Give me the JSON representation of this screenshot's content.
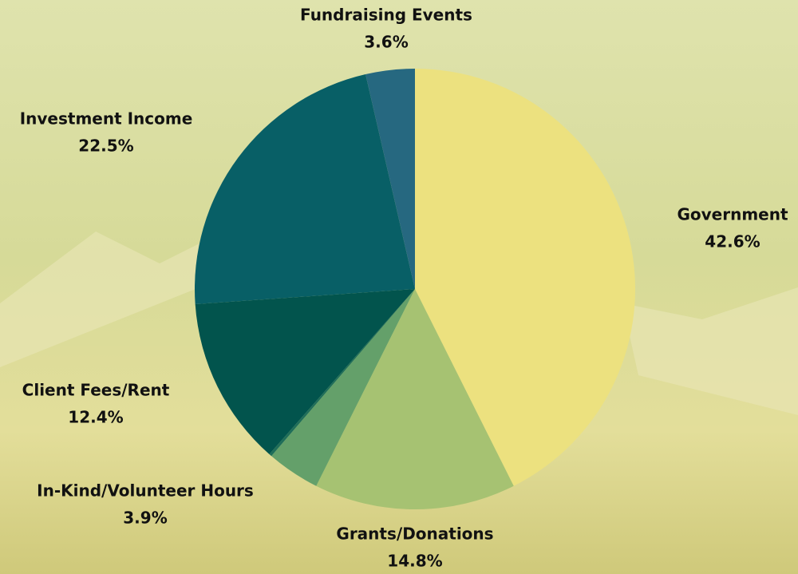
{
  "chart_data": {
    "type": "pie",
    "categories": [
      "Government",
      "Grants/Donations",
      "In-Kind/Volunteer Hours",
      null,
      "Client Fees/Rent",
      "Investment Income",
      "Fundraising Events"
    ],
    "values": [
      42.6,
      14.8,
      3.9,
      0.2,
      12.4,
      22.5,
      3.6
    ],
    "value_labels": [
      "42.6%",
      "14.8%",
      "3.9%",
      null,
      "12.4%",
      "22.5%",
      "3.6%"
    ],
    "colors": [
      "#ece17f",
      "#a6c272",
      "#64a06a",
      "#1f6e5a",
      "#02544d",
      "#085f66",
      "#266880"
    ]
  }
}
